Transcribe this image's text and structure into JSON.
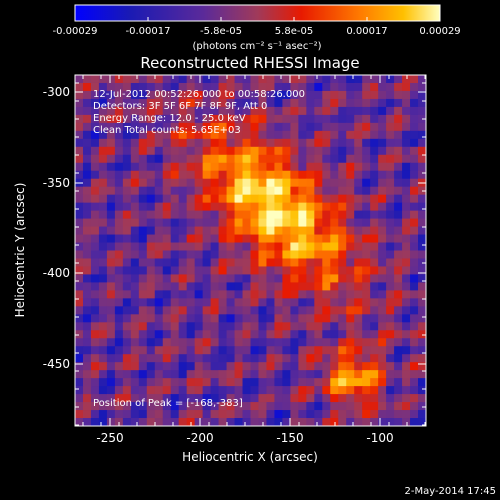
{
  "colorbar": {
    "tick_labels": [
      "-0.00029",
      "-0.00017",
      "-5.8e-05",
      "5.8e-05",
      "0.00017",
      "0.00029"
    ],
    "unit_label": "(photons cm⁻² s⁻¹ asec⁻²)",
    "colors": [
      "#0000ff",
      "#1a1ab4",
      "#5a2a9a",
      "#a03a5a",
      "#e81a00",
      "#ff7a00",
      "#ffc000",
      "#ffffc0"
    ]
  },
  "title": "Reconstructed RHESSI Image",
  "annotations": {
    "time": "12-Jul-2012 00:52:26.000 to 00:58:26.000",
    "detectors": "Detectors: 3F 5F 6F 7F 8F 9F, Att 0",
    "energy": "Energy Range: 12.0 - 25.0 keV",
    "clean": "Clean     Total counts: 5.65E+03",
    "peak": "Position of Peak = [-168,-383]"
  },
  "axes": {
    "xlabel": "Heliocentric X (arcsec)",
    "ylabel": "Heliocentric Y (arcsec)",
    "xticks": [
      "-250",
      "-200",
      "-150",
      "-100"
    ],
    "yticks": [
      "-300",
      "-350",
      "-400",
      "-450"
    ],
    "xlim": [
      -268,
      -75
    ],
    "ylim": [
      -482,
      -288
    ]
  },
  "footer": {
    "date": "2-May-2014 17:45"
  }
}
